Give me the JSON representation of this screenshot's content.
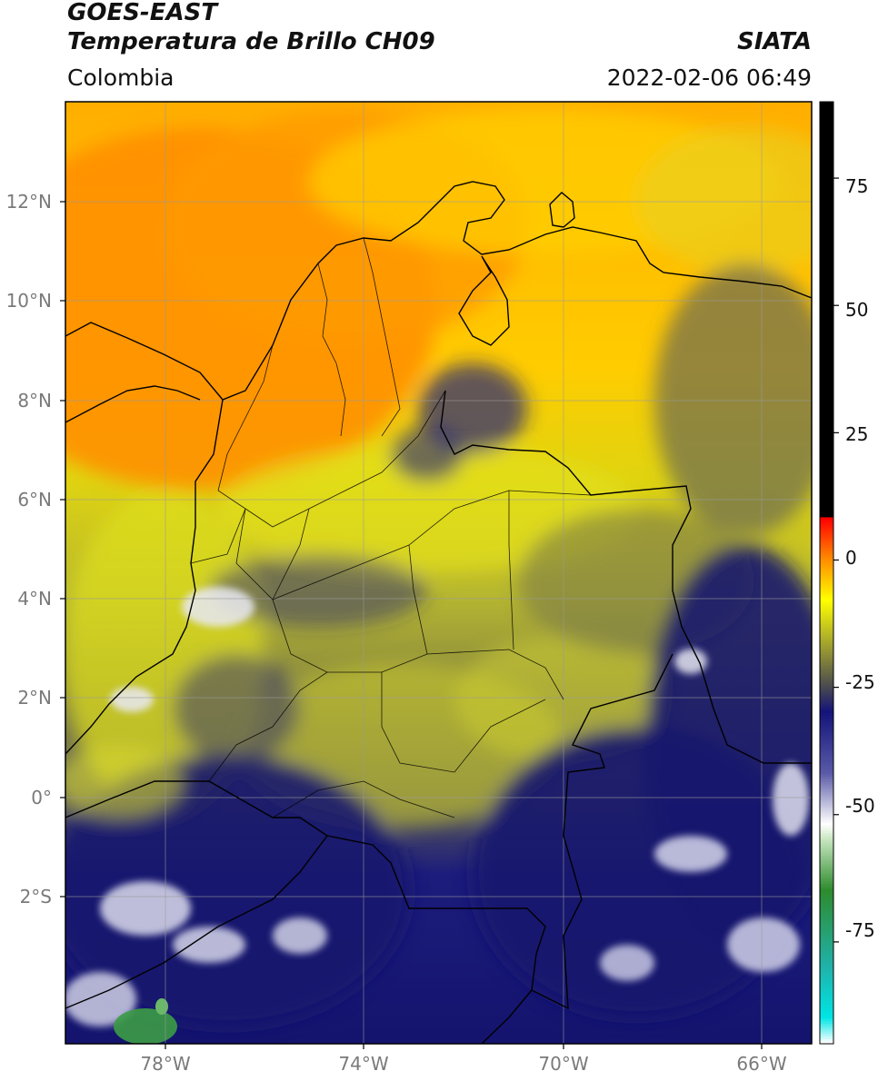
{
  "header": {
    "satellite": "GOES-EAST",
    "product": "Temperatura de Brillo CH09",
    "brand": "SIATA",
    "region": "Colombia",
    "datetime": "2022-02-06 06:49"
  },
  "map": {
    "latitude_labels": [
      "12°N",
      "10°N",
      "8°N",
      "6°N",
      "4°N",
      "2°N",
      "0°",
      "2°S"
    ],
    "longitude_labels": [
      "78°W",
      "74°W",
      "70°W",
      "66°W"
    ],
    "grid": true,
    "projection": "lat-lon",
    "extent": {
      "lon_min": -80,
      "lon_max": -65.1,
      "lat_min": -5.2,
      "lat_max": 14.1
    }
  },
  "colorbar": {
    "orientation": "vertical",
    "placement": "right",
    "tick_labels": [
      "75",
      "50",
      "25",
      "0",
      "-25",
      "-50",
      "-75"
    ],
    "range": [
      -95,
      90
    ],
    "stops": [
      {
        "value": -95,
        "color": "#ffffff"
      },
      {
        "value": -90,
        "color": "#00e5e5"
      },
      {
        "value": -80,
        "color": "#20b2aa"
      },
      {
        "value": -65,
        "color": "#2e8b2e"
      },
      {
        "value": -55,
        "color": "#c8e6c0"
      },
      {
        "value": -52,
        "color": "#ffffff"
      },
      {
        "value": -42,
        "color": "#5a5aa8"
      },
      {
        "value": -30,
        "color": "#14147a"
      },
      {
        "value": -25,
        "color": "#4a4a50"
      },
      {
        "value": -15,
        "color": "#b4b428"
      },
      {
        "value": -8,
        "color": "#ffff00"
      },
      {
        "value": 0,
        "color": "#ff8c00"
      },
      {
        "value": 8,
        "color": "#ff0000"
      },
      {
        "value": 8.01,
        "color": "#000000"
      },
      {
        "value": 90,
        "color": "#000000"
      }
    ]
  }
}
